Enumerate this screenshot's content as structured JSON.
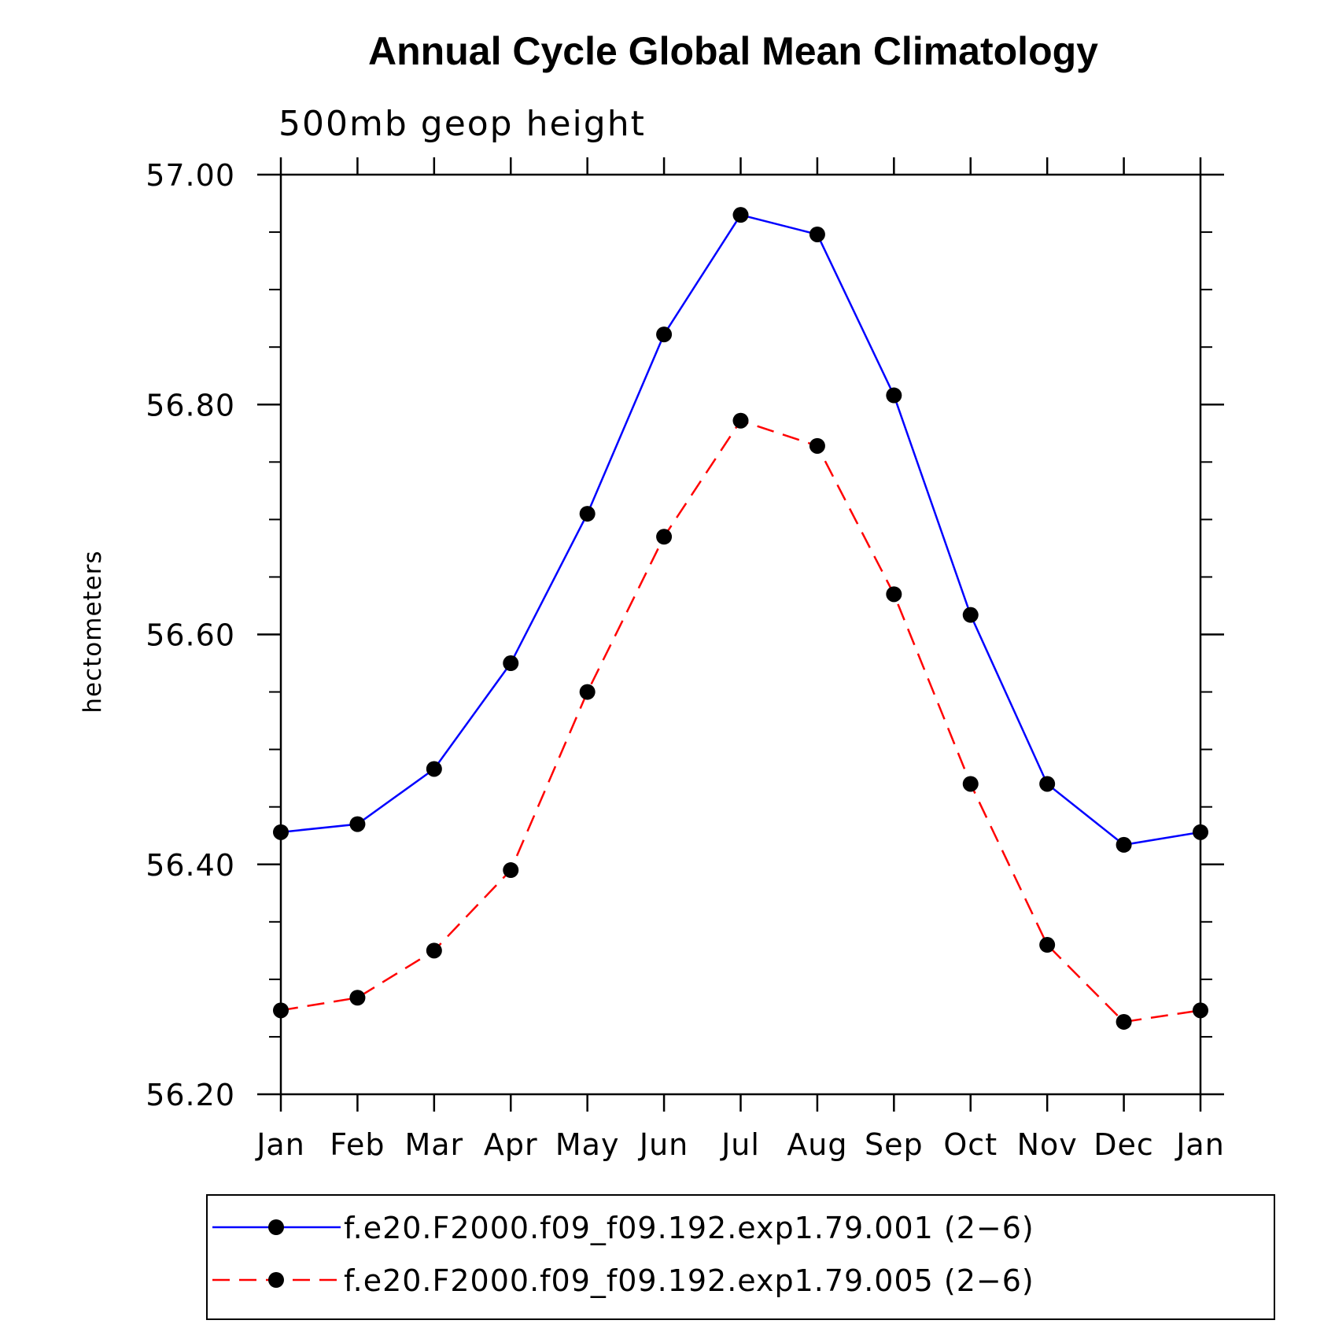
{
  "chart_data": {
    "type": "line",
    "title": "Annual Cycle Global Mean Climatology",
    "subtitle": "500mb geop height",
    "ylabel": "hectometers",
    "xlabel": "",
    "categories": [
      "Jan",
      "Feb",
      "Mar",
      "Apr",
      "May",
      "Jun",
      "Jul",
      "Aug",
      "Sep",
      "Oct",
      "Nov",
      "Dec",
      "Jan"
    ],
    "ylim": [
      56.2,
      57.0
    ],
    "yticks": [
      "56.20",
      "56.40",
      "56.60",
      "56.80",
      "57.00"
    ],
    "grid": false,
    "legend_position": "bottom",
    "series": [
      {
        "name": "f.e20.F2000.f09_f09.192.exp1.79.001 (2−6)",
        "color": "#0000ff",
        "dash": "solid",
        "marker": "filled-circle",
        "values": [
          56.428,
          56.435,
          56.483,
          56.575,
          56.705,
          56.861,
          56.965,
          56.948,
          56.808,
          56.617,
          56.47,
          56.417,
          56.428
        ]
      },
      {
        "name": "f.e20.F2000.f09_f09.192.exp1.79.005 (2−6)",
        "color": "#ff0000",
        "dash": "dashed",
        "marker": "filled-circle",
        "values": [
          56.273,
          56.284,
          56.325,
          56.395,
          56.55,
          56.685,
          56.786,
          56.764,
          56.635,
          56.47,
          56.33,
          56.263,
          56.273
        ]
      }
    ]
  }
}
